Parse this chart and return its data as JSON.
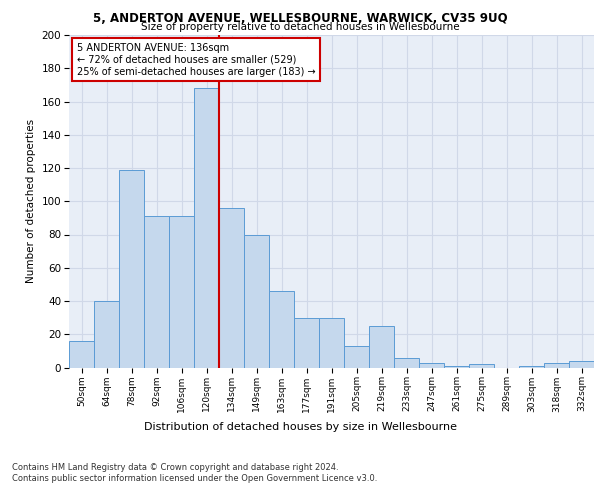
{
  "title1": "5, ANDERTON AVENUE, WELLESBOURNE, WARWICK, CV35 9UQ",
  "title2": "Size of property relative to detached houses in Wellesbourne",
  "xlabel": "Distribution of detached houses by size in Wellesbourne",
  "ylabel": "Number of detached properties",
  "categories": [
    "50sqm",
    "64sqm",
    "78sqm",
    "92sqm",
    "106sqm",
    "120sqm",
    "134sqm",
    "149sqm",
    "163sqm",
    "177sqm",
    "191sqm",
    "205sqm",
    "219sqm",
    "233sqm",
    "247sqm",
    "261sqm",
    "275sqm",
    "289sqm",
    "303sqm",
    "318sqm",
    "332sqm"
  ],
  "values": [
    16,
    40,
    119,
    91,
    91,
    168,
    96,
    80,
    46,
    30,
    30,
    13,
    25,
    6,
    3,
    1,
    2,
    0,
    1,
    3,
    4
  ],
  "bar_color": "#c5d8ed",
  "bar_edge_color": "#5b9bd5",
  "vline_x": 6,
  "vline_color": "#cc0000",
  "annotation_text": "5 ANDERTON AVENUE: 136sqm\n← 72% of detached houses are smaller (529)\n25% of semi-detached houses are larger (183) →",
  "annotation_box_color": "#ffffff",
  "annotation_box_edge": "#cc0000",
  "grid_color": "#d0d8e8",
  "ylim": [
    0,
    200
  ],
  "yticks": [
    0,
    20,
    40,
    60,
    80,
    100,
    120,
    140,
    160,
    180,
    200
  ],
  "footnote1": "Contains HM Land Registry data © Crown copyright and database right 2024.",
  "footnote2": "Contains public sector information licensed under the Open Government Licence v3.0.",
  "bg_color": "#e8eef7"
}
